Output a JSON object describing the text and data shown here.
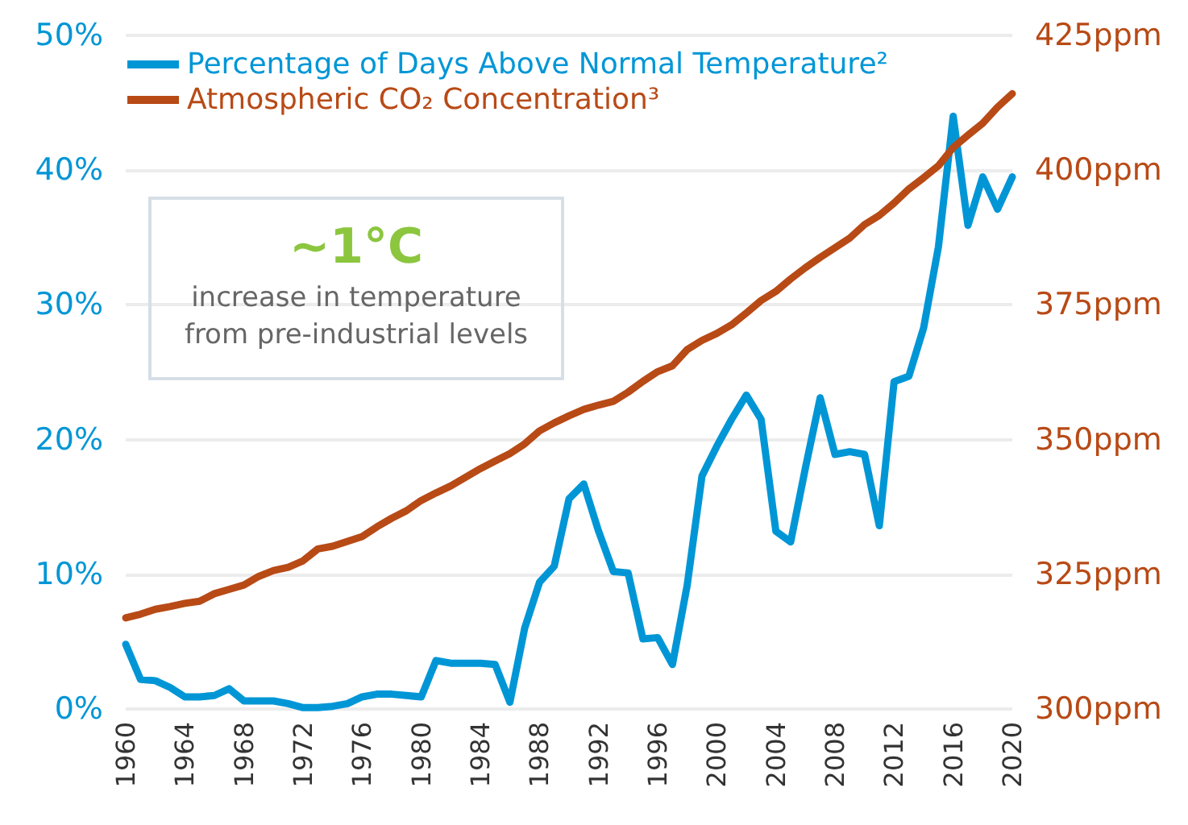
{
  "chart_data": {
    "type": "line",
    "x": [
      1960,
      1961,
      1962,
      1963,
      1964,
      1965,
      1966,
      1967,
      1968,
      1969,
      1970,
      1971,
      1972,
      1973,
      1974,
      1975,
      1976,
      1977,
      1978,
      1979,
      1980,
      1981,
      1982,
      1983,
      1984,
      1985,
      1986,
      1987,
      1988,
      1989,
      1990,
      1991,
      1992,
      1993,
      1994,
      1995,
      1996,
      1997,
      1998,
      1999,
      2000,
      2001,
      2002,
      2003,
      2004,
      2005,
      2006,
      2007,
      2008,
      2009,
      2010,
      2011,
      2012,
      2013,
      2014,
      2015,
      2016,
      2017,
      2018,
      2019,
      2020
    ],
    "series": [
      {
        "name": "Percentage of Days Above Normal Temperature²",
        "color": "#0096d6",
        "values": [
          4.8,
          2.2,
          2.1,
          1.6,
          0.9,
          0.9,
          1.0,
          1.5,
          0.6,
          0.6,
          0.6,
          0.4,
          0.1,
          0.1,
          0.2,
          0.4,
          0.9,
          1.1,
          1.1,
          1.0,
          0.9,
          3.6,
          3.4,
          3.4,
          3.4,
          3.3,
          0.5,
          6.0,
          9.4,
          10.6,
          15.6,
          16.7,
          13.2,
          10.2,
          10.1,
          5.2,
          5.3,
          3.3,
          9.2,
          17.3,
          19.5,
          21.5,
          23.3,
          21.5,
          13.2,
          12.4,
          17.9,
          23.1,
          18.9,
          19.1,
          18.9,
          13.6,
          24.3,
          24.7,
          28.3,
          34.3,
          44.0,
          35.9,
          39.5,
          37.1,
          39.5
        ]
      },
      {
        "name": "Atmospheric CO₂ Concentration³",
        "color": "#b84a16",
        "axis": "y2",
        "values": [
          316.9,
          317.6,
          318.5,
          319.0,
          319.6,
          320.0,
          321.4,
          322.2,
          323.0,
          324.6,
          325.7,
          326.3,
          327.5,
          329.7,
          330.2,
          331.1,
          332.0,
          333.8,
          335.4,
          336.8,
          338.7,
          340.1,
          341.4,
          343.0,
          344.6,
          346.0,
          347.4,
          349.2,
          351.6,
          353.1,
          354.4,
          355.6,
          356.4,
          357.1,
          358.8,
          360.8,
          362.6,
          363.7,
          366.7,
          368.4,
          369.7,
          371.3,
          373.5,
          375.8,
          377.5,
          379.8,
          381.9,
          383.8,
          385.6,
          387.4,
          389.9,
          391.6,
          393.9,
          396.5,
          398.6,
          400.8,
          404.2,
          406.5,
          408.7,
          411.7,
          414.2
        ]
      }
    ],
    "xlim": [
      1960,
      2020
    ],
    "xticks": [
      1960,
      1964,
      1968,
      1972,
      1976,
      1980,
      1984,
      1988,
      1992,
      1996,
      2000,
      2004,
      2008,
      2012,
      2016,
      2020
    ],
    "ylim": [
      0,
      50
    ],
    "yticks": [
      {
        "value": 0,
        "label": "0%"
      },
      {
        "value": 10,
        "label": "10%"
      },
      {
        "value": 20,
        "label": "20%"
      },
      {
        "value": 30,
        "label": "30%"
      },
      {
        "value": 40,
        "label": "40%"
      },
      {
        "value": 50,
        "label": "50%"
      }
    ],
    "y2lim": [
      300,
      425
    ],
    "y2ticks": [
      {
        "value": 300,
        "label": "300ppm"
      },
      {
        "value": 325,
        "label": "325ppm"
      },
      {
        "value": 350,
        "label": "350ppm"
      },
      {
        "value": 375,
        "label": "375ppm"
      },
      {
        "value": 400,
        "label": "400ppm"
      },
      {
        "value": 425,
        "label": "425ppm"
      }
    ],
    "annotations": [
      "~1°C",
      "increase in temperature\nfrom pre-industrial levels"
    ],
    "grid": "y",
    "legend": "top left",
    "marker": "none",
    "line_style": "solid"
  }
}
